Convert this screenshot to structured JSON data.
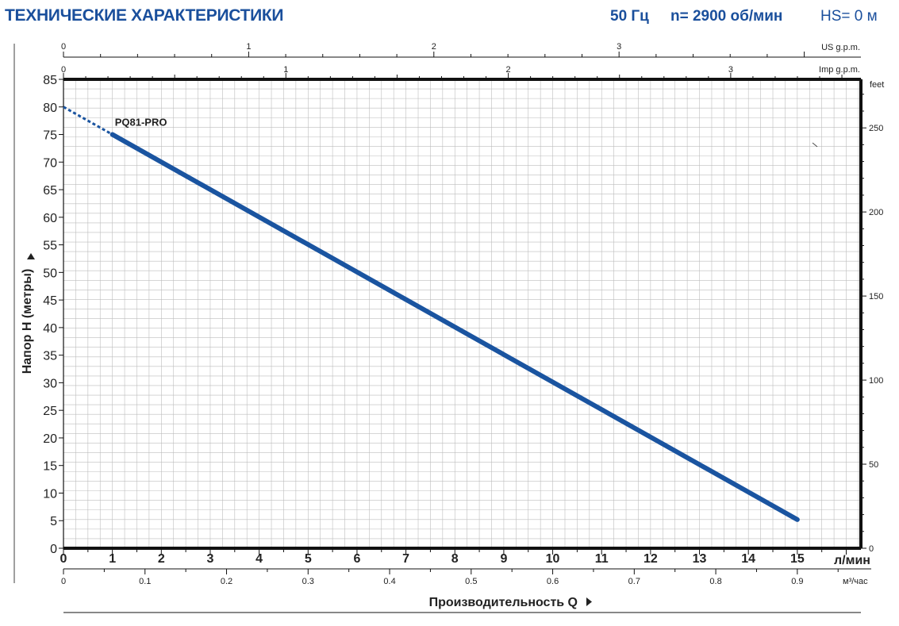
{
  "header": {
    "title": "ТЕХНИЧЕСКИЕ ХАРАКТЕРИСТИКИ",
    "frequency": "50 Гц",
    "speed": "n= 2900 об/мин",
    "hs": "HS= 0 м"
  },
  "colors": {
    "curve": "#1a54a0",
    "title": "#1a4f9c",
    "grid": "#bdbdbd"
  },
  "chart_data": {
    "type": "line",
    "title": "",
    "ylabel": "Напор H  (метры)",
    "xlabel": "Производительность Q",
    "y_unit_right": "feet",
    "x_unit_main": "л/мин",
    "x_unit_m3": "м³/час",
    "x_unit_us": "US g.p.m.",
    "x_unit_imp": "Imp g.p.m.",
    "xlim": [
      0,
      16.3
    ],
    "ylim": [
      0,
      85
    ],
    "x_ticks": [
      0,
      1,
      2,
      3,
      4,
      5,
      6,
      7,
      8,
      9,
      10,
      11,
      12,
      13,
      14,
      15
    ],
    "y_ticks": [
      0,
      5,
      10,
      15,
      20,
      25,
      30,
      35,
      40,
      45,
      50,
      55,
      60,
      65,
      70,
      75,
      80,
      85
    ],
    "feet_ticks": [
      0,
      50,
      100,
      150,
      200,
      250
    ],
    "m3h_ticks": [
      "0",
      "0.1",
      "0.2",
      "0.3",
      "0.4",
      "0.5",
      "0.6",
      "0.7",
      "0.8",
      "0.9"
    ],
    "us_gpm_ticks": [
      "0",
      "1",
      "2",
      "3"
    ],
    "imp_gpm_ticks": [
      "0",
      "1",
      "2",
      "3"
    ],
    "grid": true,
    "series": [
      {
        "name": "PQ81-PRO",
        "x": [
          1,
          15
        ],
        "y": [
          75,
          5.2
        ],
        "extrapolated": {
          "x": [
            0,
            1
          ],
          "y": [
            80,
            75
          ]
        }
      }
    ]
  }
}
